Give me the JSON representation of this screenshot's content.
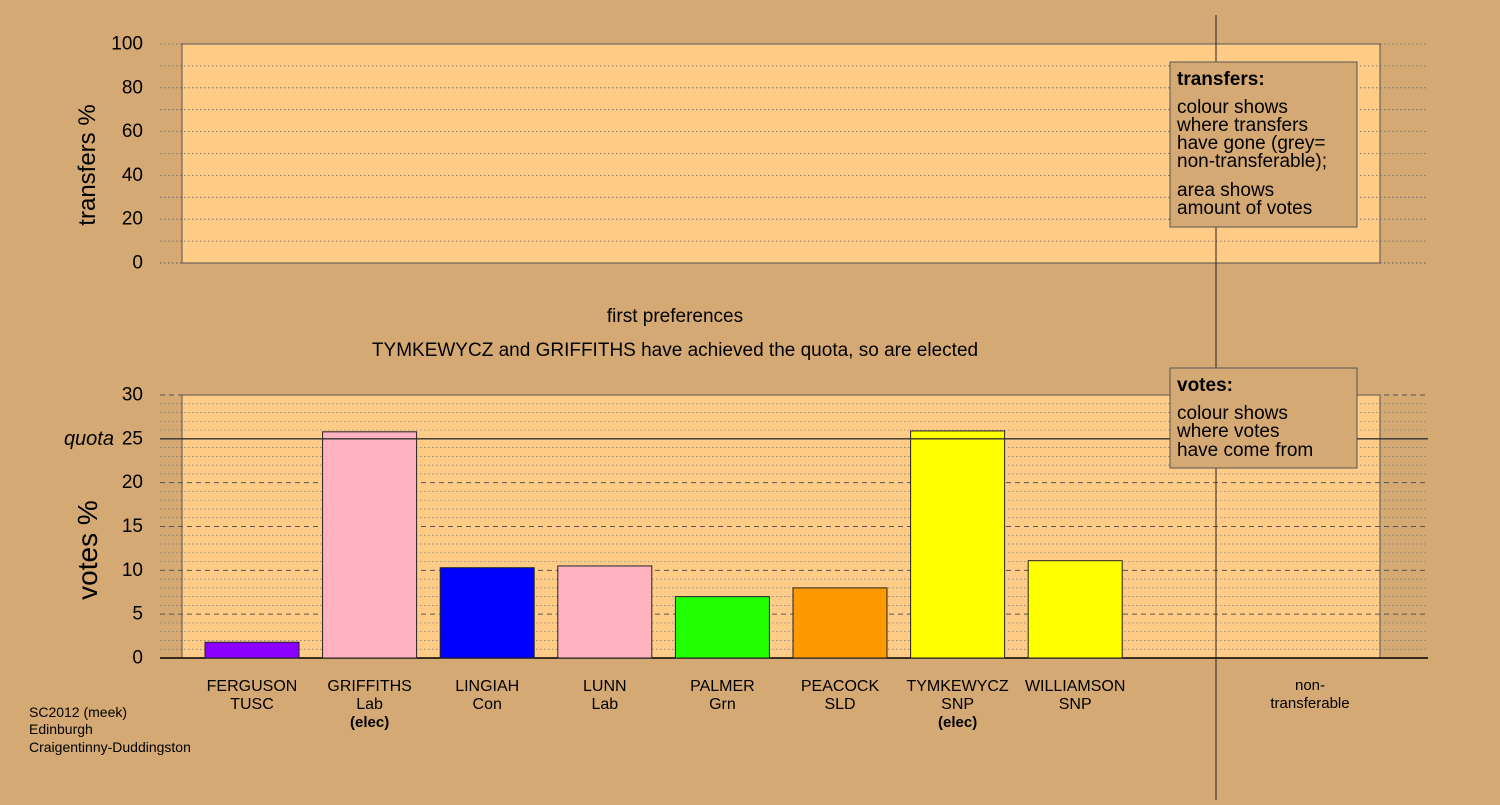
{
  "chart_data": [
    {
      "type": "bar",
      "panel": "transfers",
      "ylabel": "transfers %",
      "ylim": [
        0,
        100
      ],
      "yticks": [
        0,
        20,
        40,
        60,
        80,
        100
      ],
      "grid": "dotted",
      "values": [],
      "legend": {
        "placement": "top-right",
        "title": "transfers:",
        "lines": [
          "colour shows",
          "where transfers",
          "have gone (grey=",
          "non-transferable);",
          "area shows",
          "amount of votes"
        ]
      }
    },
    {
      "type": "bar",
      "panel": "votes",
      "ylabel": "votes %",
      "ylim": [
        0,
        30
      ],
      "yticks": [
        0,
        5,
        10,
        15,
        20,
        25,
        30
      ],
      "quota": 25,
      "quota_label": "quota",
      "grid": "dashed",
      "categories": [
        {
          "name": "FERGUSON",
          "party": "TUSC",
          "elected": ""
        },
        {
          "name": "GRIFFITHS",
          "party": "Lab",
          "elected": "(elec)"
        },
        {
          "name": "LINGIAH",
          "party": "Con",
          "elected": ""
        },
        {
          "name": "LUNN",
          "party": "Lab",
          "elected": ""
        },
        {
          "name": "PALMER",
          "party": "Grn",
          "elected": ""
        },
        {
          "name": "PEACOCK",
          "party": "SLD",
          "elected": ""
        },
        {
          "name": "TYMKEWYCZ",
          "party": "SNP",
          "elected": "(elec)"
        },
        {
          "name": "WILLIAMSON",
          "party": "SNP",
          "elected": ""
        }
      ],
      "values": [
        1.8,
        25.8,
        10.3,
        10.5,
        7.0,
        8.0,
        25.9,
        11.1
      ],
      "colors": [
        "#8b00ff",
        "#ffb3c1",
        "#0000ff",
        "#ffb3c1",
        "#22ff00",
        "#ff9900",
        "#ffff00",
        "#ffff00"
      ],
      "nontransferable": {
        "label_line1": "non-",
        "label_line2": "transferable",
        "value": 0
      },
      "legend": {
        "placement": "top-right",
        "title": "votes:",
        "lines": [
          "colour shows",
          "where votes",
          "have come from"
        ]
      }
    }
  ],
  "stage_title": "first preferences",
  "stage_message": "TYMKEWYCZ and GRIFFITHS have achieved the quota, so are elected",
  "footer": {
    "line1": "SC2012 (meek)",
    "line2": "Edinburgh",
    "line3": "Craigentinny-Duddingston"
  },
  "colors": {
    "background": "#d4a974",
    "panel": "#ffcc88",
    "axis": "#000000"
  }
}
